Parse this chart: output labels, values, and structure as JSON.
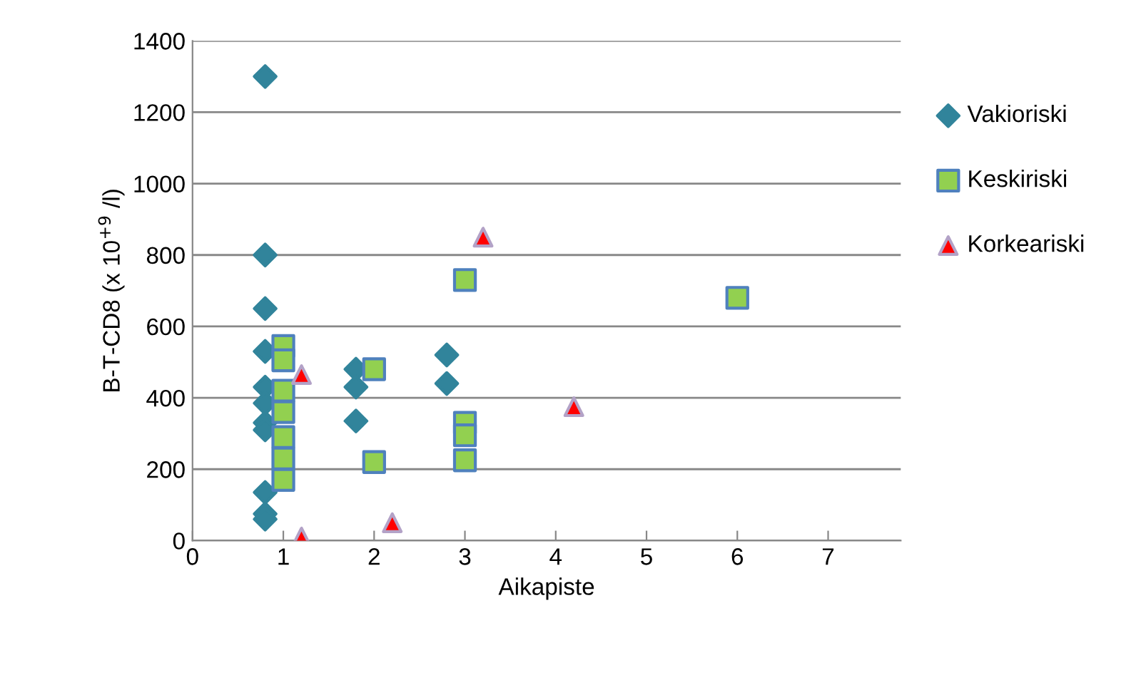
{
  "chart_data": {
    "type": "scatter",
    "xlabel": "Aikapiste",
    "ylabel": "B-T-CD8 (x 10$^{+9}$ /l)",
    "xlim": [
      0,
      7.8
    ],
    "xticks": [
      0,
      1,
      2,
      3,
      4,
      5,
      6,
      7
    ],
    "ylim": [
      0,
      1400
    ],
    "yticks": [
      0,
      200,
      400,
      600,
      800,
      1000,
      1200,
      1400
    ],
    "grid": "y",
    "legend": "right",
    "series": [
      {
        "name": "Vakioriski",
        "color": "#31849b",
        "marker": "diamond",
        "x": [
          0.8,
          0.8,
          0.8,
          0.8,
          0.8,
          0.8,
          0.8,
          0.8,
          0.8,
          0.8,
          0.8,
          1.8,
          1.8,
          1.8,
          2.8,
          2.8
        ],
        "values": [
          1300,
          800,
          650,
          530,
          430,
          385,
          330,
          310,
          135,
          75,
          60,
          480,
          430,
          335,
          520,
          440
        ]
      },
      {
        "name": "Keskiriski",
        "color": "#92d050",
        "marker": "square",
        "x": [
          1,
          1,
          1,
          1,
          1,
          1,
          1,
          2,
          2,
          3,
          3,
          3,
          3,
          6
        ],
        "values": [
          545,
          505,
          420,
          360,
          290,
          230,
          170,
          480,
          220,
          730,
          330,
          295,
          225,
          680
        ]
      },
      {
        "name": "Korkeariski",
        "color": "#ff0000",
        "marker": "triangle",
        "x": [
          1.2,
          1.2,
          2.2,
          3.2,
          4.2
        ],
        "values": [
          465,
          10,
          50,
          850,
          375
        ]
      }
    ]
  }
}
